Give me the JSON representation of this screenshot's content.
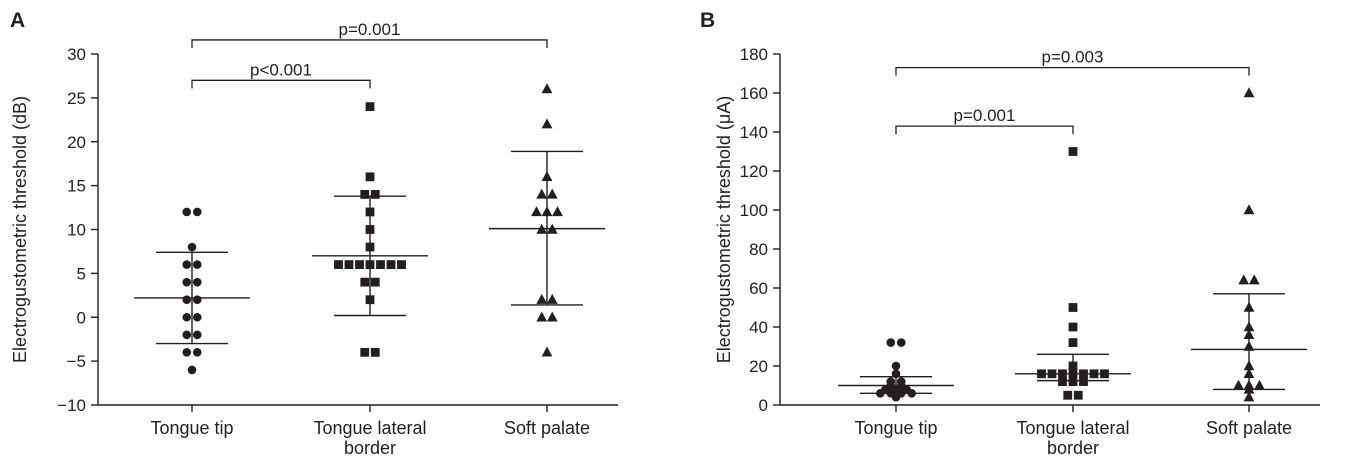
{
  "chart_data": [
    {
      "panel_label": "A",
      "type": "scatter",
      "ylabel": "Electrogustometric threshold (dB)",
      "ylim": [
        -10,
        30
      ],
      "yticks": [
        -10,
        -5,
        0,
        5,
        10,
        15,
        20,
        25,
        30
      ],
      "categories": [
        [
          "Tongue tip"
        ],
        [
          "Tongue lateral",
          "border"
        ],
        [
          "Soft palate"
        ]
      ],
      "grid": false,
      "series": [
        {
          "marker": "circle",
          "values": [
            12,
            12,
            8,
            6,
            6,
            4,
            4,
            2,
            2,
            0,
            0,
            -2,
            -2,
            -4,
            -4,
            -6
          ],
          "summary": {
            "median": 2.2,
            "low": -3,
            "high": 7.4
          }
        },
        {
          "marker": "square",
          "values": [
            24,
            16,
            14,
            14,
            12,
            10,
            8,
            6,
            6,
            6,
            6,
            6,
            6,
            6,
            4,
            4,
            2,
            -4,
            -4
          ],
          "summary": {
            "median": 7,
            "low": 0.2,
            "high": 13.8
          }
        },
        {
          "marker": "triangle",
          "values": [
            26,
            22,
            16,
            14,
            14,
            12,
            12,
            12,
            10,
            10,
            2,
            2,
            0,
            0,
            -4
          ],
          "summary": {
            "median": 10.1,
            "low": 1.4,
            "high": 18.9
          }
        }
      ],
      "comparisons": [
        {
          "from": 0,
          "to": 1,
          "label": "p<0.001",
          "level": 27
        },
        {
          "from": 0,
          "to": 2,
          "label": "p=0.001",
          "level": 31.6
        }
      ]
    },
    {
      "panel_label": "B",
      "type": "scatter",
      "ylabel": "Electrogustometric threshold (μA)",
      "ylim": [
        0,
        180
      ],
      "yticks": [
        0,
        20,
        40,
        60,
        80,
        100,
        120,
        140,
        160,
        180
      ],
      "categories": [
        [
          "Tongue tip"
        ],
        [
          "Tongue lateral",
          "border"
        ],
        [
          "Soft palate"
        ]
      ],
      "grid": false,
      "series": [
        {
          "marker": "circle",
          "values": [
            32,
            32,
            20,
            16,
            12,
            12,
            10,
            10,
            8,
            8,
            8,
            6,
            6,
            6,
            6,
            4
          ],
          "summary": {
            "median": 10,
            "low": 6,
            "high": 14.5
          }
        },
        {
          "marker": "square",
          "values": [
            130,
            50,
            40,
            32,
            20,
            16,
            16,
            16,
            16,
            16,
            16,
            16,
            12,
            12,
            12,
            5,
            5
          ],
          "summary": {
            "median": 16,
            "low": 12.5,
            "high": 26
          }
        },
        {
          "marker": "triangle",
          "values": [
            160,
            100,
            64,
            64,
            50,
            40,
            36,
            30,
            20,
            16,
            10,
            10,
            10,
            8,
            4
          ],
          "summary": {
            "median": 28.5,
            "low": 8,
            "high": 57
          }
        }
      ],
      "comparisons": [
        {
          "from": 0,
          "to": 1,
          "label": "p=0.001",
          "level": 143
        },
        {
          "from": 0,
          "to": 2,
          "label": "p=0.003",
          "level": 173
        }
      ]
    }
  ]
}
